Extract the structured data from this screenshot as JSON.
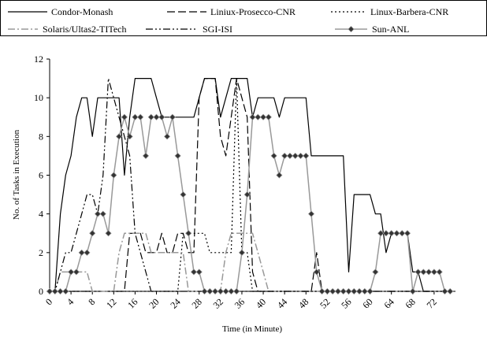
{
  "chart_data": {
    "type": "line",
    "xlabel": "Time (in Minute)",
    "ylabel": "No. of Tasks in Execution",
    "xlim": [
      0,
      76
    ],
    "ylim": [
      0,
      12
    ],
    "x_ticks": [
      0,
      4,
      8,
      12,
      16,
      20,
      24,
      28,
      32,
      36,
      40,
      44,
      48,
      52,
      56,
      60,
      64,
      68,
      72
    ],
    "y_ticks": [
      0,
      2,
      4,
      6,
      8,
      10,
      12
    ],
    "legend_position": "top",
    "series": [
      {
        "name": "Condor-Monash",
        "color": "#000000",
        "style": "solid",
        "x": [
          0,
          1,
          2,
          3,
          4,
          5,
          6,
          7,
          8,
          9,
          10,
          11,
          12,
          13,
          14,
          15,
          16,
          17,
          18,
          19,
          20,
          21,
          22,
          23,
          24,
          25,
          26,
          27,
          28,
          29,
          30,
          31,
          32,
          33,
          34,
          35,
          36,
          37,
          38,
          39,
          40,
          41,
          42,
          43,
          44,
          45,
          46,
          47,
          48,
          49,
          50,
          51,
          52,
          53,
          54,
          55,
          56,
          57,
          58,
          59,
          60,
          61,
          62,
          63,
          64,
          65,
          66,
          67,
          68,
          69,
          70,
          71,
          72,
          73,
          74,
          75
        ],
        "y": [
          0,
          0,
          4,
          6,
          7,
          9,
          10,
          10,
          8,
          10,
          10,
          10,
          10,
          10,
          6,
          9,
          11,
          11,
          11,
          11,
          10,
          9,
          9,
          9,
          9,
          9,
          9,
          9,
          10,
          11,
          11,
          11,
          9,
          10,
          11,
          11,
          11,
          11,
          9,
          10,
          10,
          10,
          10,
          9,
          10,
          10,
          10,
          10,
          10,
          7,
          7,
          7,
          7,
          7,
          7,
          7,
          1,
          5,
          5,
          5,
          5,
          4,
          4,
          2,
          3,
          3,
          3,
          3,
          1,
          1,
          0,
          0,
          0,
          0,
          0,
          0
        ]
      },
      {
        "name": "Liniux-Prosecco-CNR",
        "color": "#000000",
        "style": "long-dash",
        "x": [
          0,
          1,
          2,
          3,
          4,
          5,
          6,
          7,
          8,
          9,
          10,
          11,
          12,
          13,
          14,
          15,
          16,
          17,
          18,
          19,
          20,
          21,
          22,
          23,
          24,
          25,
          26,
          27,
          28,
          29,
          30,
          31,
          32,
          33,
          34,
          35,
          36,
          37,
          38,
          39,
          40,
          41,
          42,
          43,
          44,
          45,
          46,
          47,
          48,
          49,
          50,
          51,
          52,
          53,
          54,
          55,
          56,
          57,
          58,
          59,
          60,
          61,
          62,
          63,
          64,
          65,
          66,
          67,
          68,
          69,
          70,
          71,
          72,
          73,
          74,
          75
        ],
        "y": [
          0,
          0,
          0,
          0,
          0,
          0,
          0,
          0,
          0,
          0,
          0,
          0,
          0,
          0,
          0,
          3,
          3,
          3,
          2,
          2,
          2,
          3,
          2,
          2,
          3,
          3,
          2,
          2,
          10,
          11,
          11,
          11,
          8,
          7,
          9,
          11,
          10,
          9,
          1,
          0,
          0,
          0,
          0,
          0,
          0,
          0,
          0,
          0,
          0,
          0,
          2,
          0,
          0,
          0,
          0,
          0,
          0,
          0,
          0,
          0,
          0,
          0,
          0,
          0,
          0,
          0,
          0,
          0,
          0,
          0,
          0,
          0,
          0,
          0,
          0,
          0
        ]
      },
      {
        "name": "Linux-Barbera-CNR",
        "color": "#000000",
        "style": "dotted",
        "x": [
          0,
          1,
          2,
          3,
          4,
          5,
          6,
          7,
          8,
          9,
          10,
          11,
          12,
          13,
          14,
          15,
          16,
          17,
          18,
          19,
          20,
          21,
          22,
          23,
          24,
          25,
          26,
          27,
          28,
          29,
          30,
          31,
          32,
          33,
          34,
          35,
          36,
          37,
          38,
          39,
          40,
          41,
          42,
          43,
          44,
          45,
          46,
          47,
          48,
          49,
          50,
          51,
          52,
          53,
          54,
          55,
          56,
          57,
          58,
          59,
          60,
          61,
          62,
          63,
          64,
          65,
          66,
          67,
          68,
          69,
          70,
          71,
          72,
          73,
          74,
          75
        ],
        "y": [
          0,
          0,
          0,
          0,
          0,
          0,
          0,
          0,
          0,
          0,
          0,
          0,
          0,
          0,
          0,
          0,
          0,
          0,
          0,
          0,
          0,
          0,
          0,
          0,
          0,
          3,
          3,
          3,
          3,
          3,
          2,
          2,
          2,
          2,
          2,
          11,
          2,
          2,
          0,
          0,
          0,
          0,
          0,
          0,
          0,
          0,
          0,
          0,
          0,
          0,
          0,
          0,
          0,
          0,
          0,
          0,
          0,
          0,
          0,
          0,
          0,
          0,
          0,
          0,
          0,
          0,
          0,
          0,
          0,
          0,
          0,
          0,
          0,
          0,
          0,
          0
        ]
      },
      {
        "name": "Solaris/Ultas2-TITech",
        "color": "#999999",
        "style": "dash-dot",
        "x": [
          0,
          1,
          2,
          3,
          4,
          5,
          6,
          7,
          8,
          9,
          10,
          11,
          12,
          13,
          14,
          15,
          16,
          17,
          18,
          19,
          20,
          21,
          22,
          23,
          24,
          25,
          26,
          27,
          28,
          29,
          30,
          31,
          32,
          33,
          34,
          35,
          36,
          37,
          38,
          39,
          40,
          41,
          42,
          43,
          44,
          45,
          46,
          47,
          48,
          49,
          50,
          51,
          52,
          53,
          54,
          55,
          56,
          57,
          58,
          59,
          60,
          61,
          62,
          63,
          64,
          65,
          66,
          67,
          68,
          69,
          70,
          71,
          72,
          73,
          74,
          75
        ],
        "y": [
          0,
          0,
          1,
          1,
          1,
          1,
          1,
          1,
          0,
          0,
          0,
          0,
          0,
          2,
          3,
          3,
          3,
          3,
          3,
          2,
          2,
          2,
          2,
          2,
          2,
          2,
          0,
          0,
          0,
          0,
          0,
          0,
          0,
          2,
          3,
          3,
          3,
          3,
          3,
          2,
          1,
          0,
          0,
          0,
          0,
          0,
          0,
          0,
          0,
          0,
          0,
          0,
          0,
          0,
          0,
          0,
          0,
          0,
          0,
          0,
          0,
          0,
          0,
          0,
          0,
          0,
          0,
          0,
          0,
          0,
          0,
          0,
          0,
          0,
          0,
          0
        ]
      },
      {
        "name": "SGI-ISI",
        "color": "#000000",
        "style": "dash-dot-dot",
        "x": [
          0,
          1,
          2,
          3,
          4,
          5,
          6,
          7,
          8,
          9,
          10,
          11,
          12,
          13,
          14,
          15,
          16,
          17,
          18,
          19,
          20,
          21,
          22,
          23,
          24,
          25,
          26,
          27,
          28,
          29,
          30,
          31,
          32,
          33,
          34,
          35,
          36,
          37,
          38,
          39,
          40,
          41,
          42,
          43,
          44,
          45,
          46,
          47,
          48,
          49,
          50,
          51,
          52,
          53,
          54,
          55,
          56,
          57,
          58,
          59,
          60,
          61,
          62,
          63,
          64,
          65,
          66,
          67,
          68,
          69,
          70,
          71,
          72,
          73,
          74,
          75
        ],
        "y": [
          0,
          0,
          1,
          2,
          2,
          3,
          4,
          5,
          5,
          4,
          6,
          11,
          10,
          9,
          8,
          7,
          3,
          2,
          1,
          0,
          0,
          0,
          0,
          0,
          0,
          0,
          0,
          0,
          0,
          0,
          0,
          0,
          0,
          0,
          0,
          0,
          0,
          0,
          0,
          0,
          0,
          0,
          0,
          0,
          0,
          0,
          0,
          0,
          0,
          0,
          0,
          0,
          0,
          0,
          0,
          0,
          0,
          0,
          0,
          0,
          0,
          0,
          0,
          0,
          0,
          0,
          0,
          0,
          0,
          0,
          0,
          0,
          0,
          0,
          0,
          0
        ]
      },
      {
        "name": "Sun-ANL",
        "color": "#999999",
        "style": "solid-diamond",
        "x": [
          0,
          1,
          2,
          3,
          4,
          5,
          6,
          7,
          8,
          9,
          10,
          11,
          12,
          13,
          14,
          15,
          16,
          17,
          18,
          19,
          20,
          21,
          22,
          23,
          24,
          25,
          26,
          27,
          28,
          29,
          30,
          31,
          32,
          33,
          34,
          35,
          36,
          37,
          38,
          39,
          40,
          41,
          42,
          43,
          44,
          45,
          46,
          47,
          48,
          49,
          50,
          51,
          52,
          53,
          54,
          55,
          56,
          57,
          58,
          59,
          60,
          61,
          62,
          63,
          64,
          65,
          66,
          67,
          68,
          69,
          70,
          71,
          72,
          73,
          74,
          75
        ],
        "y": [
          0,
          0,
          0,
          0,
          1,
          1,
          2,
          2,
          3,
          4,
          4,
          3,
          6,
          8,
          9,
          8,
          9,
          9,
          7,
          9,
          9,
          9,
          8,
          9,
          7,
          5,
          3,
          1,
          1,
          0,
          0,
          0,
          0,
          0,
          0,
          0,
          2,
          5,
          9,
          9,
          9,
          9,
          7,
          6,
          7,
          7,
          7,
          7,
          7,
          4,
          1,
          0,
          0,
          0,
          0,
          0,
          0,
          0,
          0,
          0,
          0,
          1,
          3,
          3,
          3,
          3,
          3,
          3,
          0,
          1,
          1,
          1,
          1,
          1,
          0,
          0
        ]
      }
    ]
  }
}
